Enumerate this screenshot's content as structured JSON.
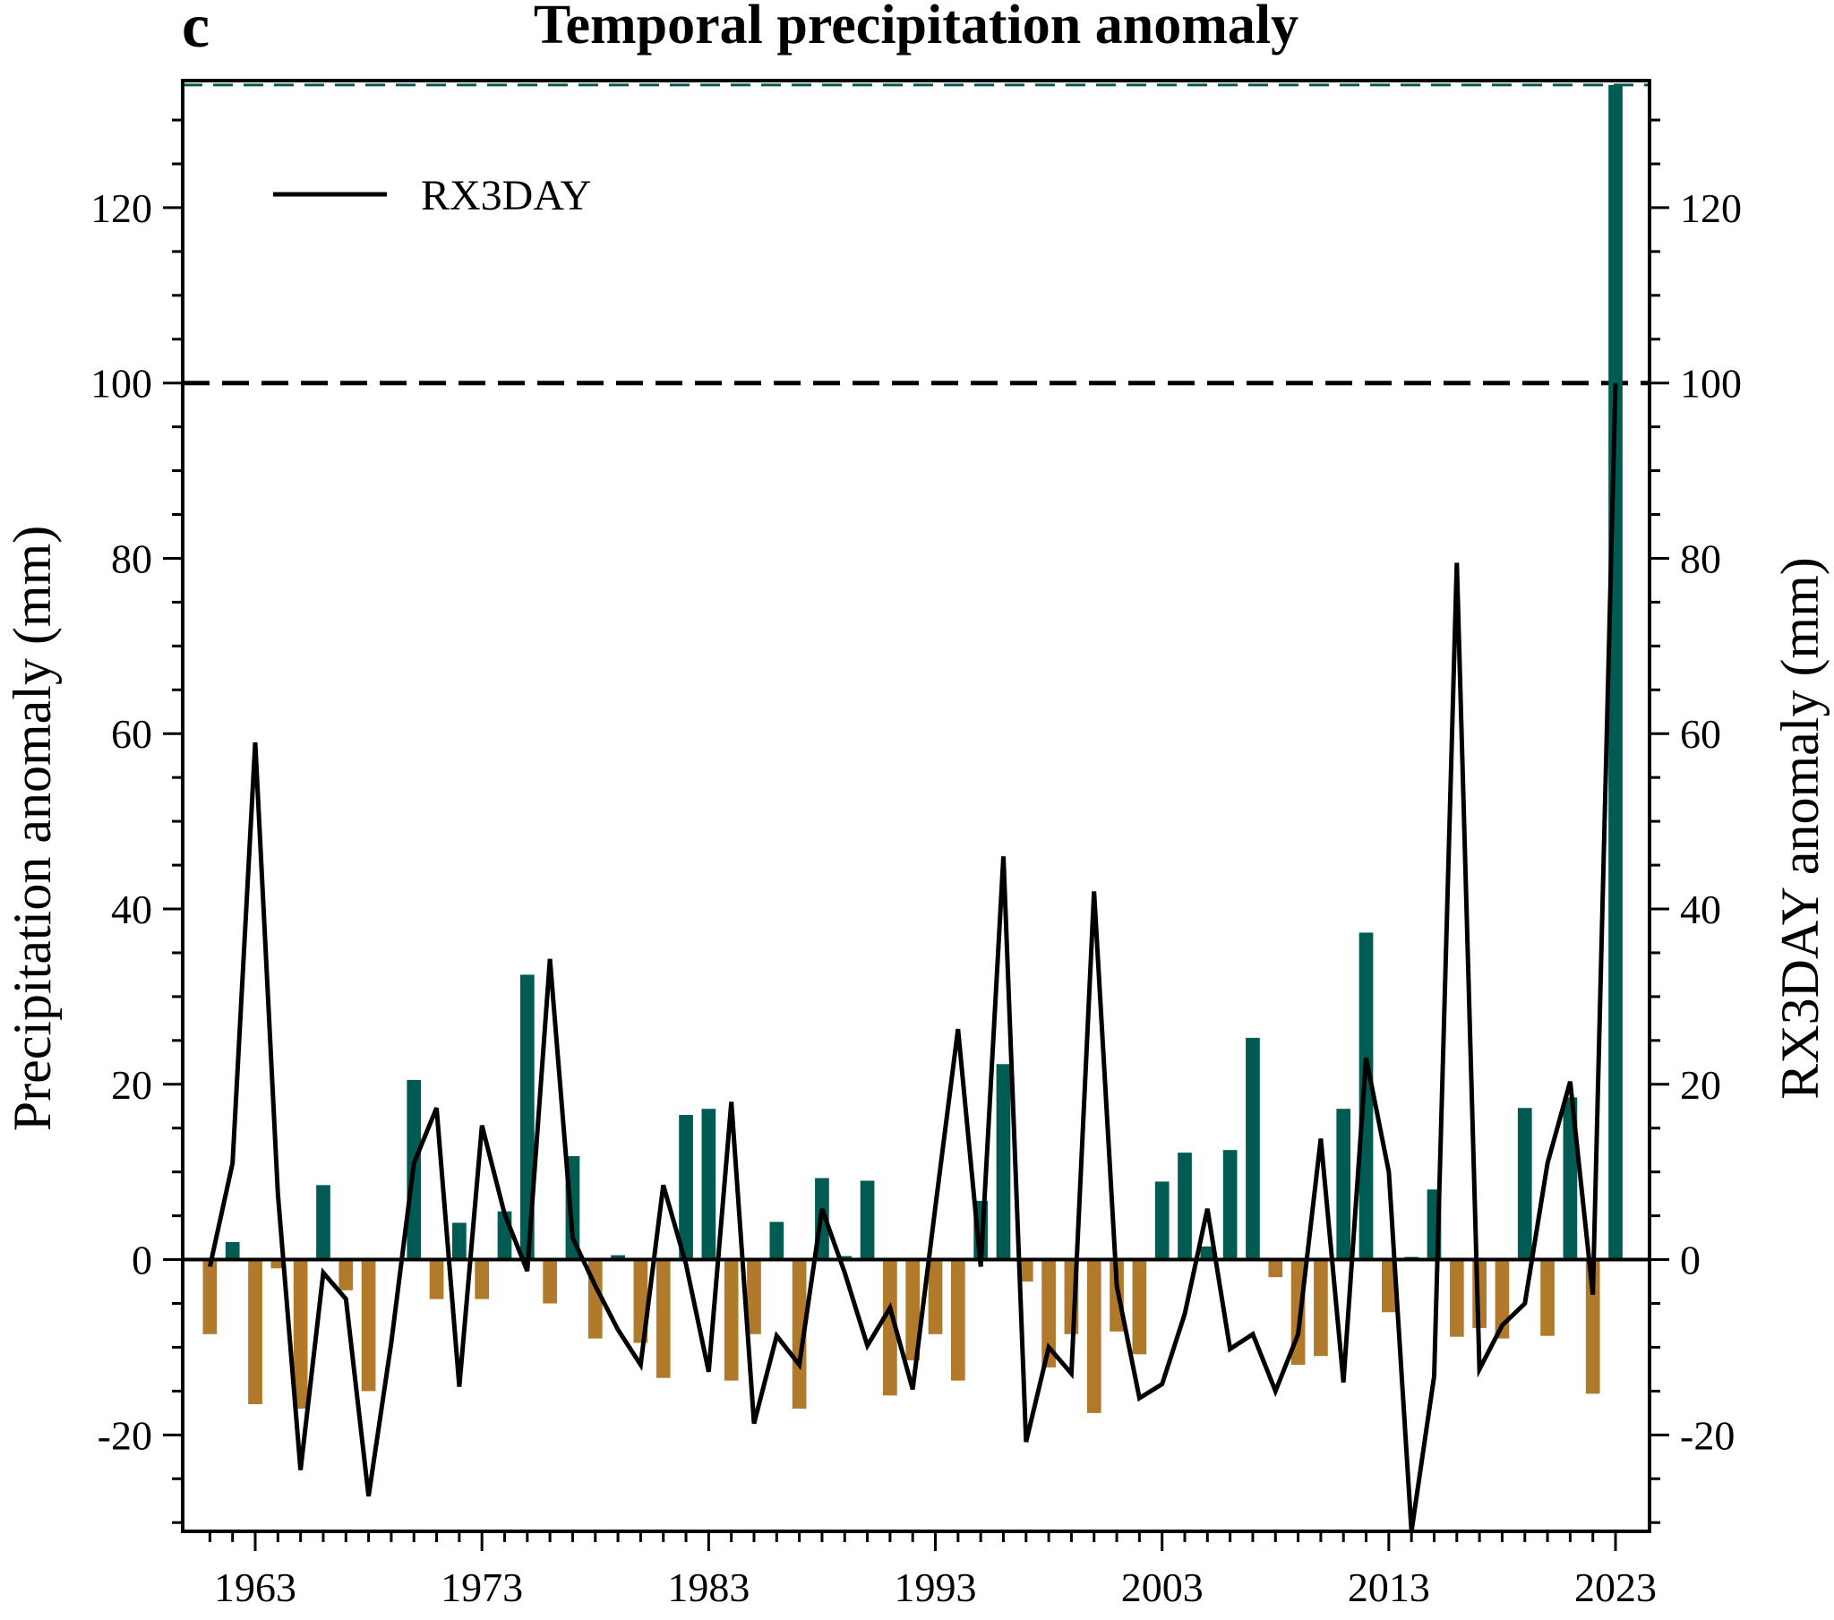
{
  "panel_letter": "c",
  "chart_data": {
    "type": "bar",
    "title": "Temporal precipitation anomaly",
    "ylabel_left": "Precipitation anomaly (mm)",
    "ylabel_right": "RX3DAY anomaly (mm)",
    "xlim": [
      1959.8,
      2024.5
    ],
    "ylim": [
      -31,
      134.5
    ],
    "x_ticks": [
      1963,
      1973,
      1983,
      1993,
      2003,
      2013,
      2023
    ],
    "y_ticks": [
      -20,
      0,
      20,
      40,
      60,
      80,
      100,
      120
    ],
    "y_ticks_right": [
      -20,
      0,
      20,
      40,
      60,
      80,
      100,
      120
    ],
    "reference_lines": [
      {
        "y": 100,
        "style": "dashed",
        "color": "#000000"
      },
      {
        "y": 134,
        "style": "dashed",
        "color": "#005a4e"
      }
    ],
    "colors": {
      "positive": "#005c52",
      "negative": "#b07a2a",
      "line": "#000000"
    },
    "legend": {
      "position": "top-left",
      "entries": [
        "RX3DAY"
      ]
    },
    "bars": {
      "name": "Precipitation anomaly",
      "x": [
        1961,
        1962,
        1963,
        1964,
        1965,
        1966,
        1967,
        1968,
        1969,
        1970,
        1971,
        1972,
        1973,
        1974,
        1975,
        1976,
        1977,
        1978,
        1979,
        1980,
        1981,
        1982,
        1983,
        1984,
        1985,
        1986,
        1987,
        1988,
        1989,
        1990,
        1991,
        1992,
        1993,
        1994,
        1995,
        1996,
        1997,
        1998,
        1999,
        2000,
        2001,
        2002,
        2003,
        2004,
        2005,
        2006,
        2007,
        2008,
        2009,
        2010,
        2011,
        2012,
        2013,
        2014,
        2015,
        2016,
        2017,
        2018,
        2019,
        2020,
        2021,
        2022,
        2023
      ],
      "values": [
        -8.5,
        2,
        -16.5,
        -1,
        -17,
        8.5,
        -3.5,
        -15,
        0,
        20.5,
        -4.5,
        4.2,
        -4.5,
        5.5,
        32.5,
        -5,
        11.8,
        -9,
        0.5,
        -9.5,
        -13.5,
        16.5,
        17.2,
        -13.8,
        -8.5,
        4.3,
        -17,
        9.3,
        0.4,
        9,
        -15.5,
        -11.5,
        -8.5,
        -13.8,
        6.7,
        22.3,
        -2.5,
        -12.3,
        -8.5,
        -17.5,
        -8.2,
        -10.8,
        8.9,
        12.2,
        1.5,
        12.5,
        25.3,
        -2,
        -12,
        -11,
        17.2,
        37.3,
        -6,
        0.3,
        8,
        -8.8,
        -7.8,
        -9,
        17.3,
        -8.7,
        18.5,
        -15.3,
        134
      ]
    },
    "series": [
      {
        "name": "RX3DAY",
        "type": "line",
        "x": [
          1961,
          1962,
          1963,
          1964,
          1965,
          1966,
          1967,
          1968,
          1969,
          1970,
          1971,
          1972,
          1973,
          1974,
          1975,
          1976,
          1977,
          1978,
          1979,
          1980,
          1981,
          1982,
          1983,
          1984,
          1985,
          1986,
          1987,
          1988,
          1989,
          1990,
          1991,
          1992,
          1993,
          1994,
          1995,
          1996,
          1997,
          1998,
          1999,
          2000,
          2001,
          2002,
          2003,
          2004,
          2005,
          2006,
          2007,
          2008,
          2009,
          2010,
          2011,
          2012,
          2013,
          2014,
          2015,
          2016,
          2017,
          2018,
          2019,
          2020,
          2021,
          2022,
          2023
        ],
        "values": [
          -0.8,
          11,
          59,
          7.5,
          -24,
          -1.5,
          -4.5,
          -27,
          -9.5,
          11,
          17.3,
          -14.5,
          15.3,
          5.2,
          -1.3,
          34.3,
          2.5,
          -3,
          -8,
          -12,
          8.5,
          -0.5,
          -12.8,
          18,
          -18.7,
          -8.7,
          -12,
          5.8,
          -1.5,
          -9.8,
          -5.5,
          -14.8,
          6,
          26.3,
          -0.8,
          46,
          -20.8,
          -10,
          -13,
          42,
          -3,
          -15.8,
          -14.2,
          -6.2,
          5.8,
          -10.2,
          -8.5,
          -15,
          -8.5,
          13.8,
          -14,
          23,
          10,
          -31,
          -13.3,
          79.5,
          -12.5,
          -7.5,
          -5,
          11,
          20.3,
          -4,
          100
        ]
      }
    ]
  }
}
